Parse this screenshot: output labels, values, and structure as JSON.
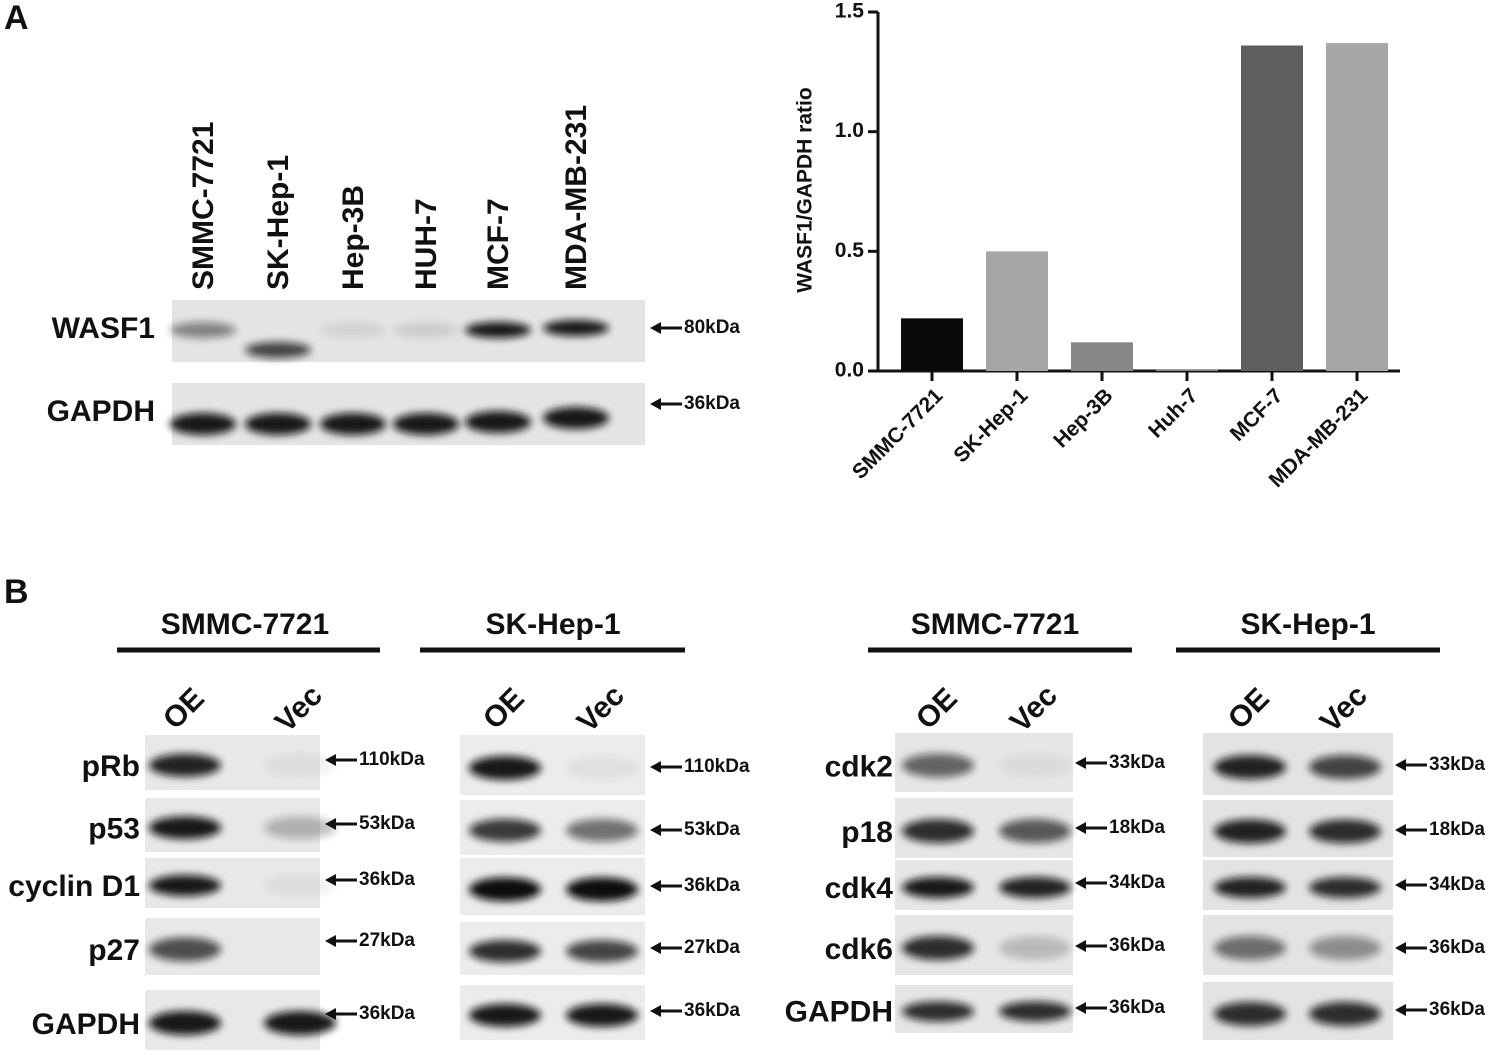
{
  "panel_a": {
    "label": "A",
    "lanes": [
      "SMMC-7721",
      "SK-Hep-1",
      "Hep-3B",
      "HUH-7",
      "MCF-7",
      "MDA-MB-231"
    ],
    "rows": [
      {
        "protein": "WASF1",
        "size": "80kDa"
      },
      {
        "protein": "GAPDH",
        "size": "36kDa"
      }
    ]
  },
  "chart_data": {
    "type": "bar",
    "y_label": "WASF1/GAPDH ratio",
    "categories": [
      "SMMC-7721",
      "SK-Hep-1",
      "Hep-3B",
      "Huh-7",
      "MCF-7",
      "MDA-MB-231"
    ],
    "values": [
      0.22,
      0.5,
      0.12,
      0.005,
      1.36,
      1.37
    ],
    "colors": [
      "#0a0a0a",
      "#a6a6a6",
      "#888888",
      "#888888",
      "#5e5e5e",
      "#a6a6a6"
    ],
    "ylim": [
      0,
      1.5
    ],
    "yticks": [
      {
        "value": 0,
        "label": "0.0"
      },
      {
        "value": 0.5,
        "label": "0.5"
      },
      {
        "value": 1,
        "label": "1.0"
      },
      {
        "value": 1.5,
        "label": "1.5"
      }
    ]
  },
  "panel_b": {
    "label": "B",
    "blots": [
      {
        "cell_line": "SMMC-7721",
        "lanes": [
          "OE",
          "Vec"
        ],
        "rows": [
          {
            "protein": "pRb",
            "size": "110kDa"
          },
          {
            "protein": "p53",
            "size": "53kDa"
          },
          {
            "protein": "cyclin D1",
            "size": "36kDa"
          },
          {
            "protein": "p27",
            "size": "27kDa"
          },
          {
            "protein": "GAPDH",
            "size": "36kDa"
          }
        ]
      },
      {
        "cell_line": "SK-Hep-1",
        "lanes": [
          "OE",
          "Vec"
        ],
        "rows": [
          {
            "size": "110kDa"
          },
          {
            "size": "53kDa"
          },
          {
            "size": "36kDa"
          },
          {
            "size": "27kDa"
          },
          {
            "size": "36kDa"
          }
        ]
      },
      {
        "cell_line": "SMMC-7721",
        "lanes": [
          "OE",
          "Vec"
        ],
        "rows": [
          {
            "protein": "cdk2",
            "size": "33kDa"
          },
          {
            "protein": "p18",
            "size": "18kDa"
          },
          {
            "protein": "cdk4",
            "size": "34kDa"
          },
          {
            "protein": "cdk6",
            "size": "36kDa"
          },
          {
            "protein": "GAPDH",
            "size": "36kDa"
          }
        ]
      },
      {
        "cell_line": "SK-Hep-1",
        "lanes": [
          "OE",
          "Vec"
        ],
        "rows": [
          {
            "size": "33kDa"
          },
          {
            "size": "18kDa"
          },
          {
            "size": "34kDa"
          },
          {
            "size": "36kDa"
          },
          {
            "size": "36kDa"
          }
        ]
      }
    ]
  }
}
